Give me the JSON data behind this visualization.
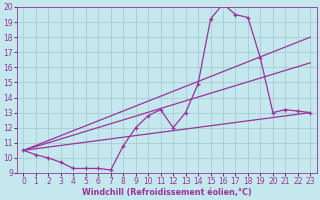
{
  "xlabel": "Windchill (Refroidissement éolien,°C)",
  "background_color": "#c5e8ee",
  "grid_color": "#a0c8d0",
  "line_color": "#993399",
  "xlim": [
    -0.5,
    23.5
  ],
  "ylim": [
    9,
    20
  ],
  "yticks": [
    9,
    10,
    11,
    12,
    13,
    14,
    15,
    16,
    17,
    18,
    19,
    20
  ],
  "xticks": [
    0,
    1,
    2,
    3,
    4,
    5,
    6,
    7,
    8,
    9,
    10,
    11,
    12,
    13,
    14,
    15,
    16,
    17,
    18,
    19,
    20,
    21,
    22,
    23
  ],
  "line1_x": [
    0,
    1,
    2,
    3,
    4,
    5,
    6,
    7,
    8,
    9,
    10,
    11,
    12,
    13,
    14,
    15,
    16,
    17,
    18,
    19,
    20,
    21,
    22,
    23
  ],
  "line1_y": [
    10.5,
    10.2,
    10.0,
    9.7,
    9.3,
    9.3,
    9.3,
    9.2,
    10.8,
    12.0,
    12.8,
    13.2,
    12.0,
    13.0,
    14.9,
    19.2,
    20.2,
    19.5,
    19.3,
    16.6,
    13.0,
    13.2,
    13.1,
    13.0
  ],
  "line2_x": [
    0,
    23
  ],
  "line2_y": [
    10.5,
    18.0
  ],
  "line3_x": [
    0,
    23
  ],
  "line3_y": [
    10.5,
    16.3
  ],
  "line4_x": [
    0,
    23
  ],
  "line4_y": [
    10.5,
    13.0
  ],
  "tick_fontsize": 5.5,
  "xlabel_fontsize": 5.8,
  "lw": 0.9
}
